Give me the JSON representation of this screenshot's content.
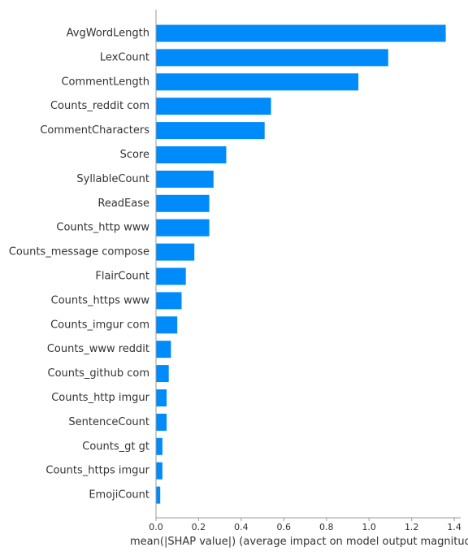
{
  "chart_data": {
    "type": "bar",
    "orientation": "horizontal",
    "title": "",
    "xlabel": "mean(|SHAP value|) (average impact on model output magnitude)",
    "ylabel": "",
    "xlim": [
      0,
      1.43
    ],
    "xticks": [
      0.0,
      0.2,
      0.4,
      0.6,
      0.8,
      1.0,
      1.2,
      1.4
    ],
    "xtick_labels": [
      "0.0",
      "0.2",
      "0.4",
      "0.6",
      "0.8",
      "1.0",
      "1.2",
      "1.4"
    ],
    "grid": false,
    "legend": "none",
    "bar_color": "#008bfb",
    "categories": [
      "AvgWordLength",
      "LexCount",
      "CommentLength",
      "Counts_reddit com",
      "CommentCharacters",
      "Score",
      "SyllableCount",
      "ReadEase",
      "Counts_http www",
      "Counts_message compose",
      "FlairCount",
      "Counts_https www",
      "Counts_imgur com",
      "Counts_www reddit",
      "Counts_github com",
      "Counts_http imgur",
      "SentenceCount",
      "Counts_gt gt",
      "Counts_https imgur",
      "EmojiCount"
    ],
    "values": [
      1.36,
      1.09,
      0.95,
      0.54,
      0.51,
      0.33,
      0.27,
      0.25,
      0.25,
      0.18,
      0.14,
      0.12,
      0.1,
      0.07,
      0.06,
      0.05,
      0.05,
      0.03,
      0.03,
      0.02
    ]
  }
}
